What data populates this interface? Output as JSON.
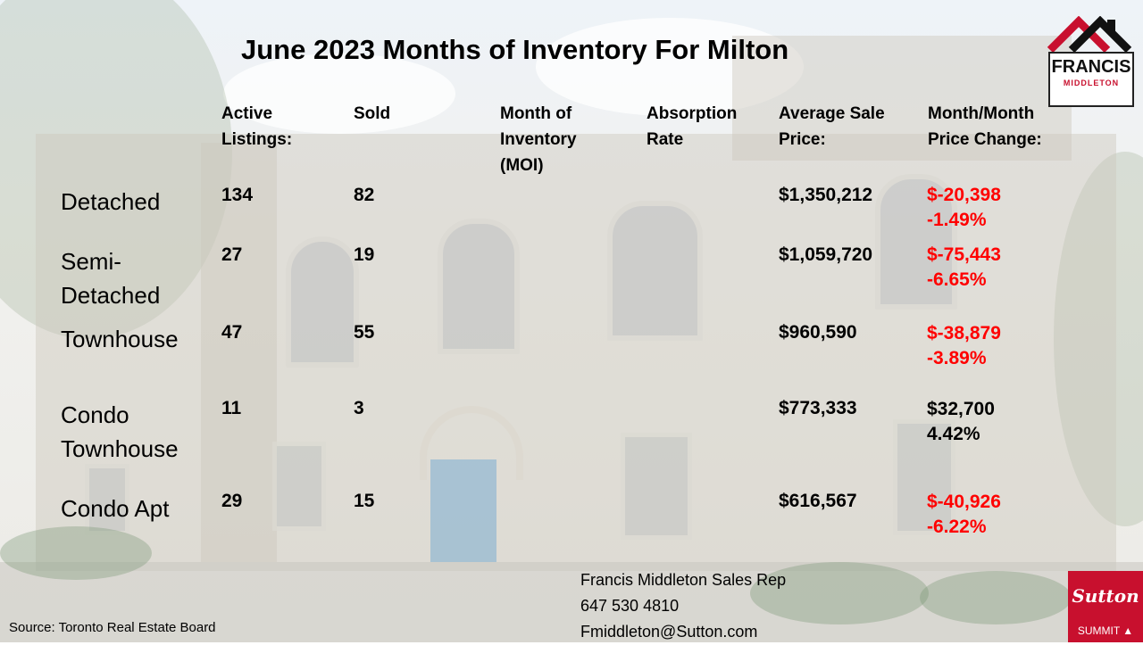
{
  "title": "June 2023 Months of Inventory For Milton",
  "headers": {
    "active": [
      "Active",
      "Listings:"
    ],
    "sold": "Sold",
    "moi": [
      "Month of",
      "Inventory",
      "(MOI)"
    ],
    "absorption": [
      "Absorption",
      "Rate"
    ],
    "avg_price": [
      "Average Sale",
      "Price:"
    ],
    "mom_change": [
      "Month/Month",
      "Price Change:"
    ]
  },
  "rows": [
    {
      "category": [
        "Detached"
      ],
      "active": "134",
      "sold": "82",
      "avg_price": "$1,350,212",
      "change": "$-20,398",
      "change_pct": "-1.49%",
      "direction": "down"
    },
    {
      "category": [
        "Semi-",
        "Detached"
      ],
      "active": "27",
      "sold": "19",
      "avg_price": "$1,059,720",
      "change": "$-75,443",
      "change_pct": "-6.65%",
      "direction": "down"
    },
    {
      "category": [
        "Townhouse"
      ],
      "active": "47",
      "sold": "55",
      "avg_price": "$960,590",
      "change": "$-38,879",
      "change_pct": "-3.89%",
      "direction": "down"
    },
    {
      "category": [
        "Condo",
        "Townhouse"
      ],
      "active": "11",
      "sold": "3",
      "avg_price": "$773,333",
      "change": "$32,700",
      "change_pct": "4.42%",
      "direction": "up"
    },
    {
      "category": [
        "Condo Apt"
      ],
      "active": "29",
      "sold": "15",
      "avg_price": "$616,567",
      "change": "$-40,926",
      "change_pct": "-6.22%",
      "direction": "down"
    }
  ],
  "source": "Source: Toronto Real Estate Board",
  "contact": {
    "name": "Francis Middleton Sales Rep",
    "phone": "647 530 4810",
    "email": "Fmiddleton@Sutton.com"
  },
  "logo": {
    "name": "FRANCIS",
    "sub": "MIDDLETON"
  },
  "brand": {
    "word": "Sutton",
    "sub": "SUMMIT"
  },
  "colors": {
    "negative": "#ff0000",
    "positive": "#000000",
    "brand_red": "#c8102e"
  }
}
